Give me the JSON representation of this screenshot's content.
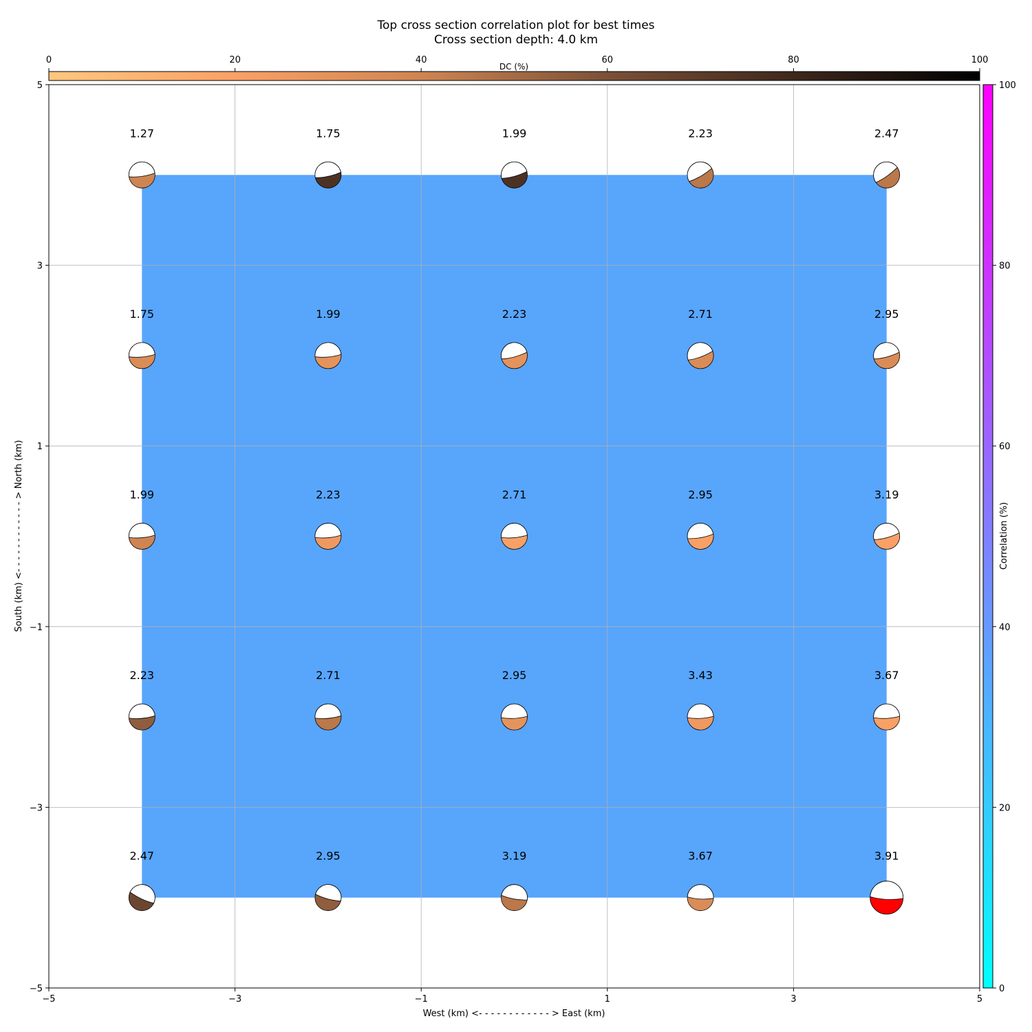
{
  "chart_data": {
    "type": "heatmap",
    "title": "Top cross section correlation plot for best times",
    "subtitle": "Cross section depth: 4.0 km",
    "xlabel": "West (km) <- - - - - - - - - - - - > East (km)",
    "ylabel": "South (km) <- - - - - - - - - - - - > North (km)",
    "xlim": [
      -5,
      5
    ],
    "ylim": [
      -5,
      5
    ],
    "xticks": [
      -5,
      -3,
      -1,
      1,
      3,
      5
    ],
    "yticks": [
      -5,
      -3,
      -1,
      1,
      3,
      5
    ],
    "xtick_labels": [
      "−5",
      "−3",
      "−1",
      "1",
      "3",
      "5"
    ],
    "ytick_labels": [
      "−5",
      "−3",
      "−1",
      "1",
      "3",
      "5"
    ],
    "grid": true,
    "field": {
      "x_range": [
        -4,
        4
      ],
      "y_range": [
        -4,
        4
      ],
      "correlation": 42,
      "color": "#58a5fc"
    },
    "top_colorbar": {
      "label": "DC (%)",
      "range": [
        0,
        100
      ],
      "ticks": [
        "0",
        "20",
        "40",
        "60",
        "80",
        "100"
      ],
      "colormap": "copper_r"
    },
    "right_colorbar": {
      "label": "Correlation (%)",
      "range": [
        0,
        100
      ],
      "ticks": [
        "0",
        "20",
        "40",
        "60",
        "80",
        "100"
      ],
      "colormap": "cool"
    },
    "points": [
      {
        "x": -4,
        "y": 4,
        "label": "1.27",
        "dc": 40,
        "angle": -8
      },
      {
        "x": -2,
        "y": 4,
        "label": "1.75",
        "dc": 75,
        "angle": -12
      },
      {
        "x": 0,
        "y": 4,
        "label": "1.99",
        "dc": 75,
        "angle": -15
      },
      {
        "x": 2,
        "y": 4,
        "label": "2.23",
        "dc": 45,
        "angle": -30
      },
      {
        "x": 4,
        "y": 4,
        "label": "2.47",
        "dc": 45,
        "angle": -35
      },
      {
        "x": -4,
        "y": 2,
        "label": "1.75",
        "dc": 35,
        "angle": -5
      },
      {
        "x": -2,
        "y": 2,
        "label": "1.99",
        "dc": 30,
        "angle": -5
      },
      {
        "x": 0,
        "y": 2,
        "label": "2.23",
        "dc": 30,
        "angle": -15
      },
      {
        "x": 2,
        "y": 2,
        "label": "2.71",
        "dc": 35,
        "angle": -20
      },
      {
        "x": 4,
        "y": 2,
        "label": "2.95",
        "dc": 35,
        "angle": -15
      },
      {
        "x": -4,
        "y": 0,
        "label": "1.99",
        "dc": 40,
        "angle": -5
      },
      {
        "x": -2,
        "y": 0,
        "label": "2.23",
        "dc": 25,
        "angle": -5
      },
      {
        "x": 0,
        "y": 0,
        "label": "2.71",
        "dc": 20,
        "angle": -5
      },
      {
        "x": 2,
        "y": 0,
        "label": "2.95",
        "dc": 20,
        "angle": -10
      },
      {
        "x": 4,
        "y": 0,
        "label": "3.19",
        "dc": 20,
        "angle": -15
      },
      {
        "x": -4,
        "y": -2,
        "label": "2.23",
        "dc": 55,
        "angle": -5
      },
      {
        "x": -2,
        "y": -2,
        "label": "2.71",
        "dc": 45,
        "angle": -5
      },
      {
        "x": 0,
        "y": -2,
        "label": "2.95",
        "dc": 30,
        "angle": -3
      },
      {
        "x": 2,
        "y": -2,
        "label": "3.43",
        "dc": 25,
        "angle": -3
      },
      {
        "x": 4,
        "y": -2,
        "label": "3.67",
        "dc": 20,
        "angle": -3
      },
      {
        "x": -4,
        "y": -4,
        "label": "2.47",
        "dc": 65,
        "angle": 25
      },
      {
        "x": -2,
        "y": -4,
        "label": "2.95",
        "dc": 55,
        "angle": 15
      },
      {
        "x": 0,
        "y": -4,
        "label": "3.19",
        "dc": 45,
        "angle": 10
      },
      {
        "x": 2,
        "y": -4,
        "label": "3.67",
        "dc": 35,
        "angle": 3
      },
      {
        "x": 4,
        "y": -4,
        "label": "3.91",
        "dc": 0,
        "angle": 3,
        "highlight": true,
        "color": "#ff0000"
      }
    ]
  }
}
